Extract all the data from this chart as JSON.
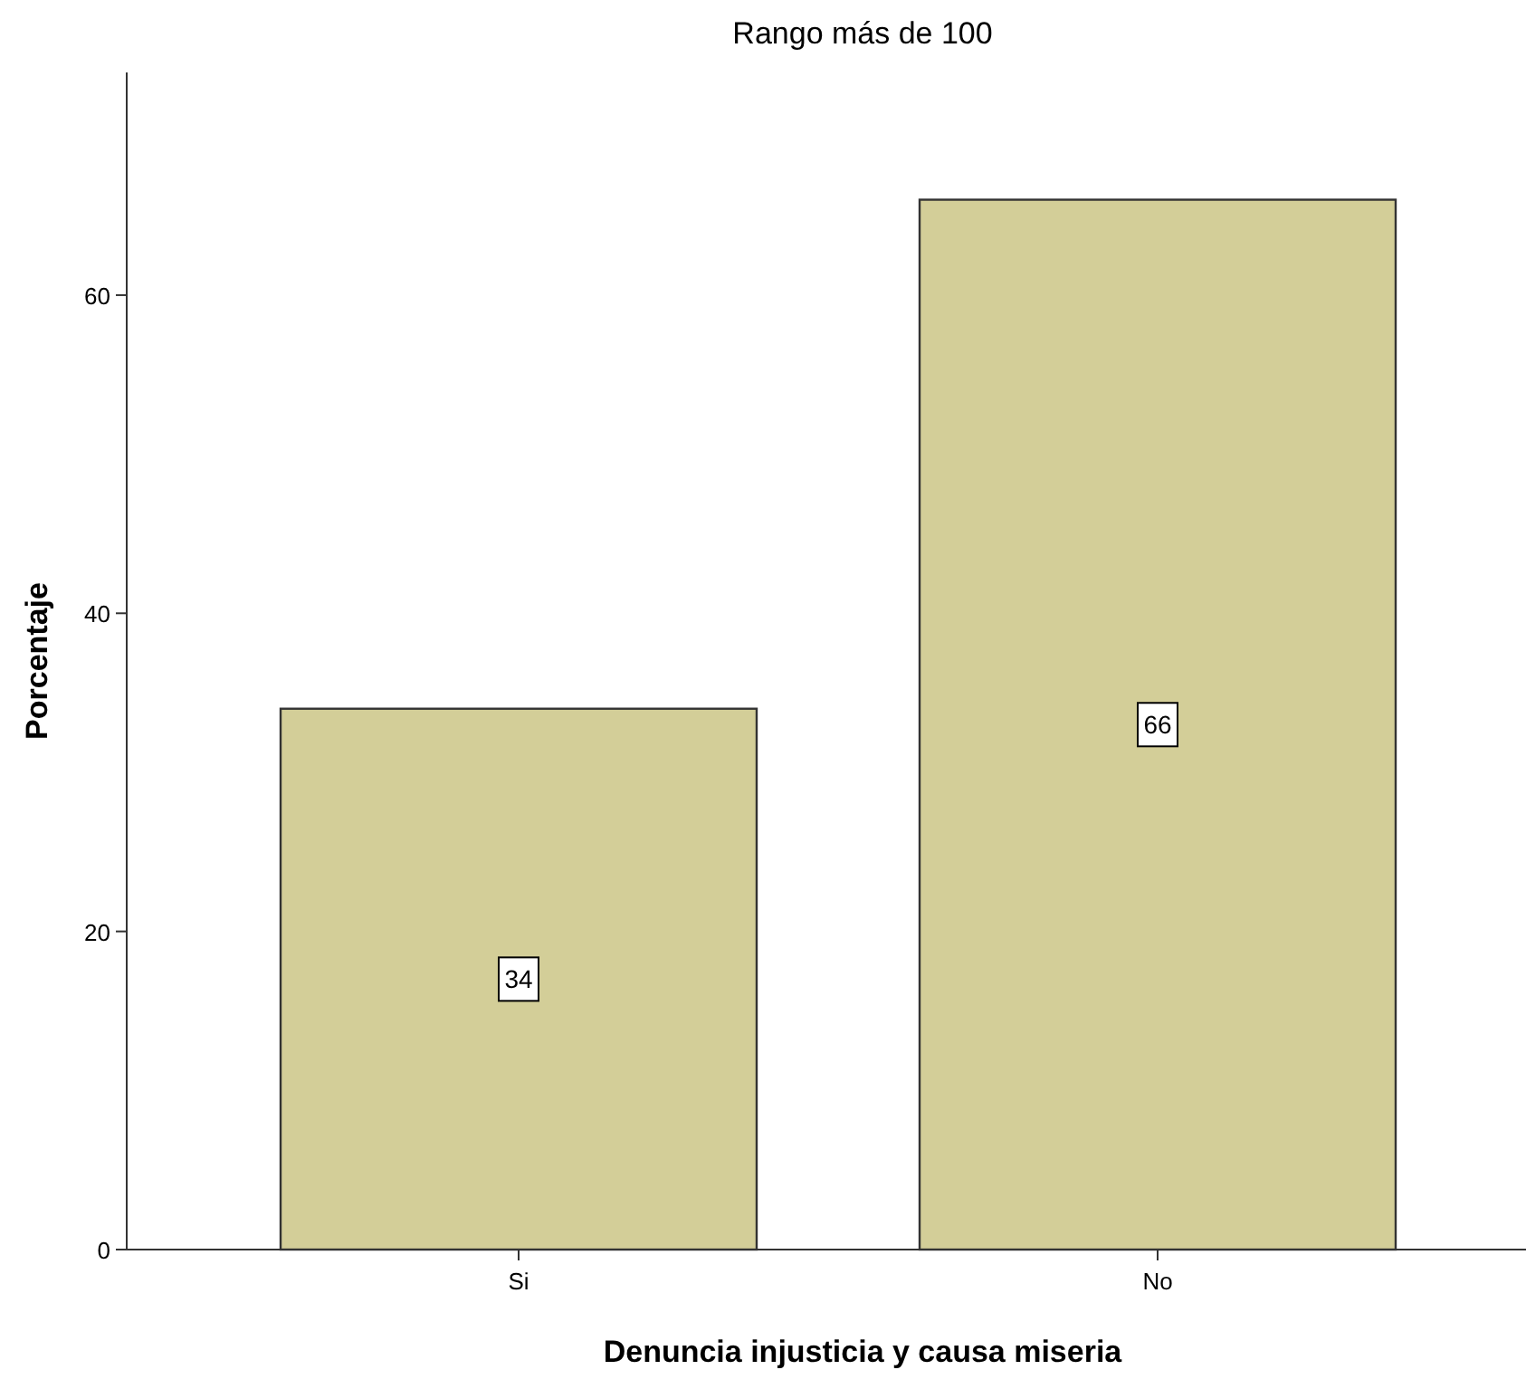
{
  "chart_data": {
    "type": "bar",
    "title": "Rango más de 100",
    "xlabel": "Denuncia injusticia y causa miseria",
    "ylabel": "Porcentaje",
    "categories": [
      "Si",
      "No"
    ],
    "values": [
      34,
      66
    ],
    "color": "#d3ce98",
    "ylim": [
      0,
      74
    ],
    "yticks": [
      0,
      20,
      40,
      60
    ],
    "data_labels": true
  }
}
